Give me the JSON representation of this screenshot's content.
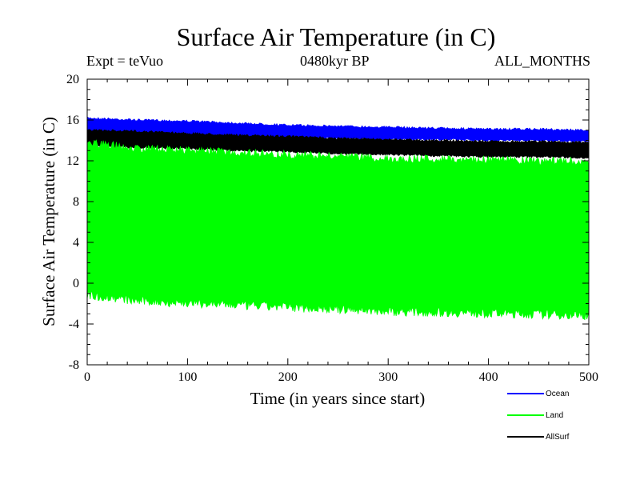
{
  "chart_data": {
    "type": "line",
    "title": "Surface Air Temperature (in C)",
    "expt_label": "Expt = teVuo",
    "period_label": "0480kyr BP",
    "months_label": "ALL_MONTHS",
    "xlabel": "Time (in years since start)",
    "ylabel": "Surface Air Temperature (in C)",
    "xlim": [
      0,
      500
    ],
    "ylim": [
      -8,
      20
    ],
    "xticks": [
      "0",
      "100",
      "200",
      "300",
      "400",
      "500"
    ],
    "yticks": [
      "-8",
      "-4",
      "0",
      "4",
      "8",
      "12",
      "16",
      "20"
    ],
    "grid": false,
    "legend_position": "bottom-right",
    "x": [
      0,
      50,
      100,
      150,
      200,
      250,
      300,
      350,
      400,
      450,
      500
    ],
    "series": [
      {
        "name": "Ocean",
        "color": "#0000ff",
        "values_max": [
          16.3,
          16.1,
          16.0,
          15.8,
          15.6,
          15.5,
          15.4,
          15.3,
          15.2,
          15.2,
          15.1
        ],
        "values_min": [
          14.7,
          14.5,
          14.4,
          14.3,
          14.2,
          14.1,
          14.0,
          14.0,
          13.9,
          13.9,
          13.8
        ]
      },
      {
        "name": "Land",
        "color": "#00ff00",
        "values_max": [
          14.2,
          13.6,
          13.4,
          13.2,
          13.0,
          12.8,
          12.6,
          12.6,
          12.5,
          12.4,
          12.3
        ],
        "values_min": [
          -1.6,
          -2.2,
          -2.4,
          -2.6,
          -2.8,
          -3.0,
          -3.2,
          -3.3,
          -3.4,
          -3.5,
          -3.6
        ]
      },
      {
        "name": "AllSurf",
        "color": "#000000",
        "values_max": [
          15.1,
          15.0,
          14.8,
          14.6,
          14.5,
          14.3,
          14.2,
          14.1,
          14.0,
          14.0,
          13.9
        ],
        "values_min": [
          13.4,
          13.2,
          13.1,
          12.9,
          12.8,
          12.6,
          12.5,
          12.4,
          12.3,
          12.3,
          12.2
        ]
      }
    ]
  }
}
